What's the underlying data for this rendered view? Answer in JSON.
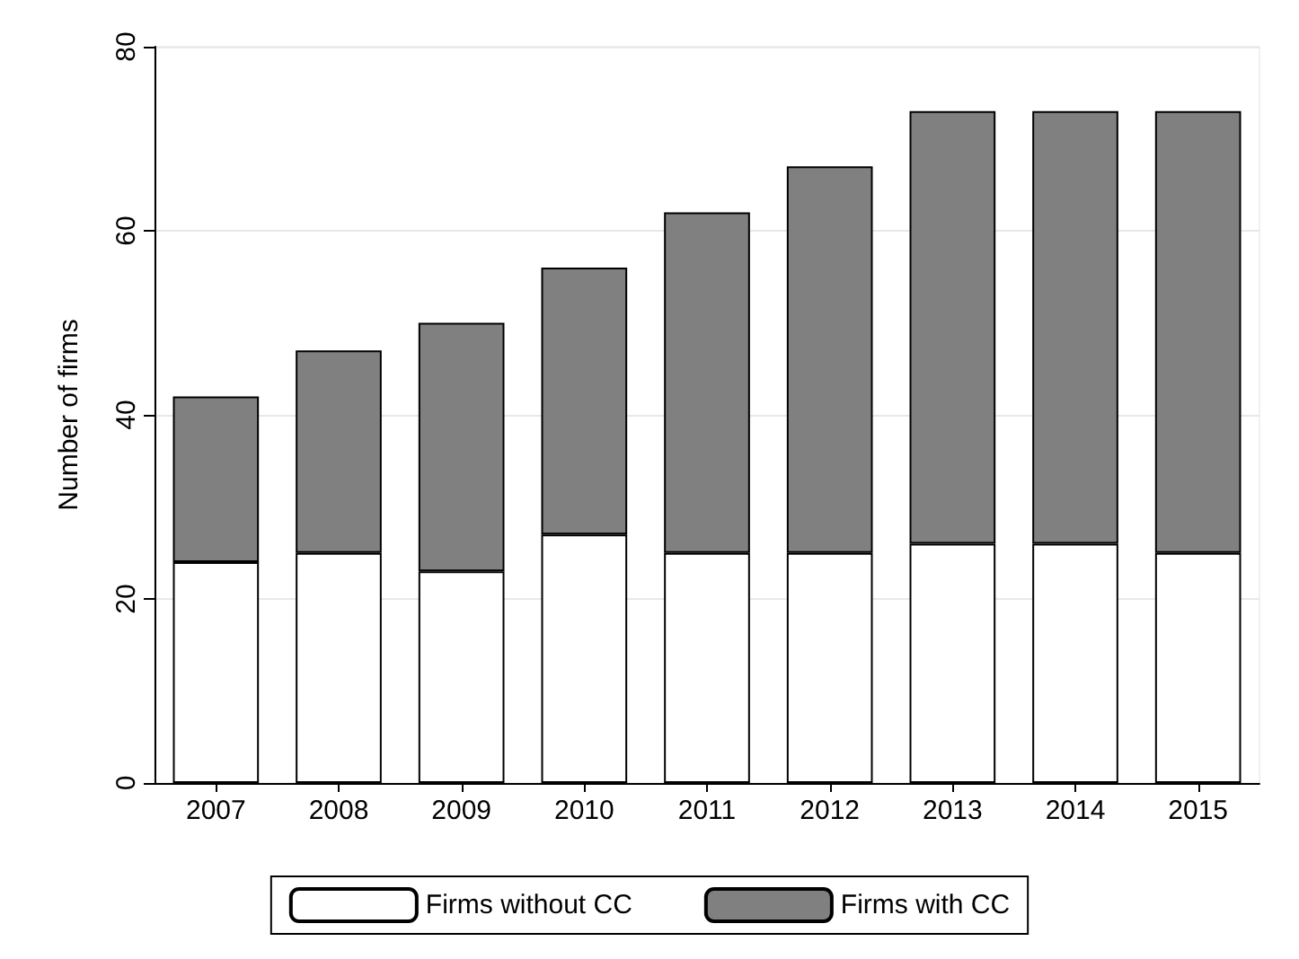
{
  "chart_data": {
    "type": "bar",
    "stacked": true,
    "ylabel": "Number of firms",
    "categories": [
      "2007",
      "2008",
      "2009",
      "2010",
      "2011",
      "2012",
      "2013",
      "2014",
      "2015"
    ],
    "series": [
      {
        "name": "Firms without CC",
        "color": "#ffffff",
        "values": [
          24,
          25,
          23,
          27,
          25,
          25,
          26,
          26,
          25
        ]
      },
      {
        "name": "Firms with CC",
        "color": "#808080",
        "values": [
          18,
          22,
          27,
          29,
          37,
          42,
          47,
          47,
          48
        ]
      }
    ],
    "ylim": [
      0,
      80
    ],
    "yticks": [
      0,
      20,
      40,
      60,
      80
    ],
    "grid": "y",
    "legend": "bottom"
  }
}
